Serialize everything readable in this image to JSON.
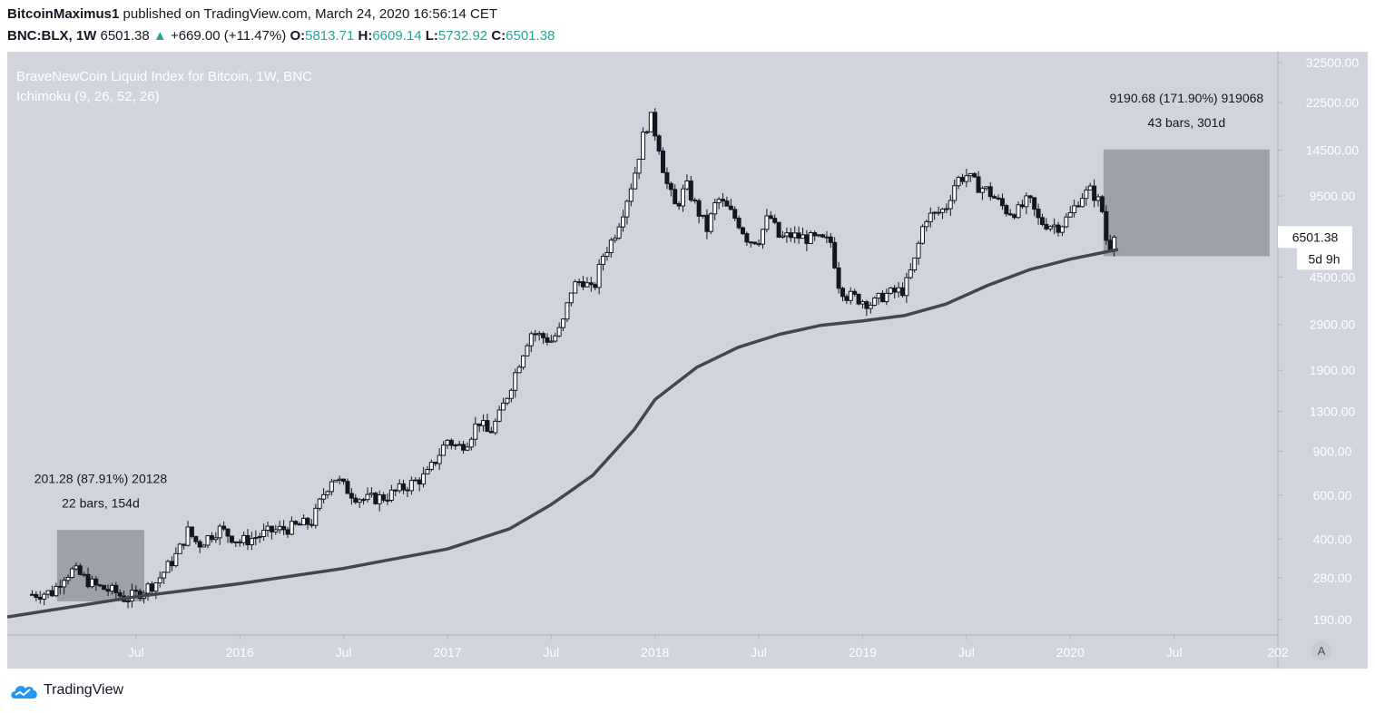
{
  "header": {
    "author": "BitcoinMaximus1",
    "published_text": "published on TradingView.com, March 24, 2020 16:56:14 CET",
    "symbol": "BNC:BLX, 1W",
    "last": "6501.38",
    "change": "+669.00 (+11.47%)",
    "o_label": "O:",
    "o_value": "5813.71",
    "h_label": "H:",
    "h_value": "6609.14",
    "l_label": "L:",
    "l_value": "5732.92",
    "c_label": "C:",
    "c_value": "6501.38"
  },
  "legend": {
    "title": "BraveNewCoin Liquid Index for Bitcoin, 1W, BNC",
    "indicator": "Ichimoku (9, 26, 52, 26)"
  },
  "footer": {
    "brand": "TradingView",
    "scale_mode": "A"
  },
  "colors": {
    "background": "#d1d4dc",
    "candle": "#131722",
    "ma_line": "#434651",
    "range_box": "#9598a1",
    "accent_green": "#26a69a"
  },
  "chart_data": {
    "type": "candlestick",
    "scale": "log",
    "title": "BraveNewCoin Liquid Index for Bitcoin, 1W, BNC",
    "y_ticks": [
      190,
      280,
      400,
      600,
      900,
      1300,
      1900,
      2900,
      4500,
      9500,
      14500,
      22500,
      32500
    ],
    "y_tick_labels": [
      "190.00",
      "280.00",
      "400.00",
      "600.00",
      "900.00",
      "1300.00",
      "1900.00",
      "2900.00",
      "4500.00",
      "9500.00",
      "14500.00",
      "22500.00",
      "32500.00"
    ],
    "x_ticks": [
      {
        "label": "Jul",
        "t": 2015.5
      },
      {
        "label": "2016",
        "t": 2016.0
      },
      {
        "label": "Jul",
        "t": 2016.5
      },
      {
        "label": "2017",
        "t": 2017.0
      },
      {
        "label": "Jul",
        "t": 2017.5
      },
      {
        "label": "2018",
        "t": 2018.0
      },
      {
        "label": "Jul",
        "t": 2018.5
      },
      {
        "label": "2019",
        "t": 2019.0
      },
      {
        "label": "Jul",
        "t": 2019.5
      },
      {
        "label": "2020",
        "t": 2020.0
      },
      {
        "label": "Jul",
        "t": 2020.5
      },
      {
        "label": "202",
        "t": 2021.0
      }
    ],
    "x_range": [
      2014.88,
      2021.0
    ],
    "y_range": [
      165,
      36000
    ],
    "price_series": [
      [
        2015.0,
        240
      ],
      [
        2015.1,
        245
      ],
      [
        2015.15,
        285
      ],
      [
        2015.2,
        300
      ],
      [
        2015.3,
        260
      ],
      [
        2015.4,
        245
      ],
      [
        2015.45,
        230
      ],
      [
        2015.5,
        240
      ],
      [
        2015.6,
        270
      ],
      [
        2015.7,
        350
      ],
      [
        2015.75,
        430
      ],
      [
        2015.8,
        380
      ],
      [
        2015.9,
        440
      ],
      [
        2016.0,
        390
      ],
      [
        2016.05,
        400
      ],
      [
        2016.15,
        430
      ],
      [
        2016.25,
        445
      ],
      [
        2016.35,
        470
      ],
      [
        2016.4,
        600
      ],
      [
        2016.45,
        720
      ],
      [
        2016.5,
        650
      ],
      [
        2016.55,
        600
      ],
      [
        2016.6,
        575
      ],
      [
        2016.7,
        590
      ],
      [
        2016.8,
        650
      ],
      [
        2016.9,
        720
      ],
      [
        2016.95,
        850
      ],
      [
        2017.0,
        1000
      ],
      [
        2017.05,
        930
      ],
      [
        2017.1,
        1000
      ],
      [
        2017.15,
        1200
      ],
      [
        2017.2,
        1050
      ],
      [
        2017.25,
        1250
      ],
      [
        2017.3,
        1600
      ],
      [
        2017.35,
        2100
      ],
      [
        2017.4,
        2700
      ],
      [
        2017.45,
        2600
      ],
      [
        2017.5,
        2500
      ],
      [
        2017.55,
        2800
      ],
      [
        2017.6,
        4100
      ],
      [
        2017.65,
        4400
      ],
      [
        2017.7,
        3900
      ],
      [
        2017.75,
        5500
      ],
      [
        2017.8,
        6500
      ],
      [
        2017.85,
        8500
      ],
      [
        2017.9,
        11500
      ],
      [
        2017.95,
        17500
      ],
      [
        2017.98,
        19500
      ],
      [
        2018.02,
        15000
      ],
      [
        2018.05,
        11000
      ],
      [
        2018.1,
        8500
      ],
      [
        2018.15,
        10500
      ],
      [
        2018.2,
        8500
      ],
      [
        2018.25,
        7000
      ],
      [
        2018.3,
        9300
      ],
      [
        2018.35,
        8400
      ],
      [
        2018.4,
        7500
      ],
      [
        2018.45,
        6300
      ],
      [
        2018.5,
        6400
      ],
      [
        2018.55,
        8000
      ],
      [
        2018.6,
        6400
      ],
      [
        2018.65,
        6600
      ],
      [
        2018.75,
        6400
      ],
      [
        2018.85,
        6200
      ],
      [
        2018.88,
        4300
      ],
      [
        2018.92,
        3800
      ],
      [
        2018.97,
        3700
      ],
      [
        2019.05,
        3500
      ],
      [
        2019.1,
        3800
      ],
      [
        2019.2,
        4000
      ],
      [
        2019.25,
        5200
      ],
      [
        2019.3,
        7800
      ],
      [
        2019.35,
        8000
      ],
      [
        2019.4,
        8500
      ],
      [
        2019.45,
        11000
      ],
      [
        2019.5,
        11500
      ],
      [
        2019.55,
        10500
      ],
      [
        2019.6,
        10000
      ],
      [
        2019.7,
        8200
      ],
      [
        2019.75,
        8300
      ],
      [
        2019.8,
        9200
      ],
      [
        2019.85,
        7500
      ],
      [
        2019.9,
        7300
      ],
      [
        2019.95,
        7200
      ],
      [
        2020.0,
        8000
      ],
      [
        2020.05,
        9500
      ],
      [
        2020.1,
        10000
      ],
      [
        2020.15,
        8700
      ],
      [
        2020.18,
        5800
      ],
      [
        2020.2,
        6200
      ],
      [
        2020.23,
        6501.38
      ]
    ],
    "ma_series": [
      [
        2014.88,
        195
      ],
      [
        2015.5,
        235
      ],
      [
        2016.0,
        265
      ],
      [
        2016.5,
        305
      ],
      [
        2017.0,
        365
      ],
      [
        2017.3,
        440
      ],
      [
        2017.5,
        550
      ],
      [
        2017.7,
        720
      ],
      [
        2017.9,
        1100
      ],
      [
        2018.0,
        1450
      ],
      [
        2018.2,
        1950
      ],
      [
        2018.4,
        2350
      ],
      [
        2018.6,
        2650
      ],
      [
        2018.8,
        2880
      ],
      [
        2019.0,
        3000
      ],
      [
        2019.2,
        3150
      ],
      [
        2019.4,
        3500
      ],
      [
        2019.6,
        4150
      ],
      [
        2019.8,
        4800
      ],
      [
        2020.0,
        5300
      ],
      [
        2020.23,
        5800
      ]
    ],
    "measure_boxes": [
      {
        "t0": 2015.12,
        "t1": 2015.54,
        "p0": 225,
        "p1": 435,
        "line1": "201.28 (87.91%) 20128",
        "line2": "22 bars, 154d"
      },
      {
        "t0": 2020.16,
        "t1": 2020.96,
        "p0": 5450,
        "p1": 14600,
        "line1": "9190.68 (171.90%) 919068",
        "line2": "43 bars, 301d"
      }
    ],
    "last_price_label": "6501.38",
    "countdown_label": "5d 9h"
  }
}
